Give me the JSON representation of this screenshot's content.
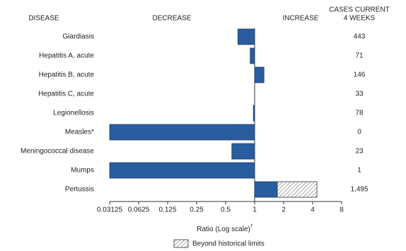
{
  "chart_data": {
    "type": "bar",
    "orientation": "horizontal",
    "log_scale": true,
    "log_base": 2,
    "column_headers": {
      "disease": "DISEASE",
      "decrease": "DECREASE",
      "increase": "INCREASE",
      "cases_line1": "CASES CURRENT",
      "cases_line2": "4 WEEKS"
    },
    "categories": [
      "Giardiasis",
      "Hepatitis A, acute",
      "Hepatitis B, acute",
      "Hepatitis C, acute",
      "Legionellosis",
      "Measles*",
      "Meningococcal disease",
      "Mumps",
      "Pertussis"
    ],
    "values": [
      0.67,
      0.9,
      1.25,
      1,
      0.97,
      0.03125,
      0.58,
      0.03125,
      4.43
    ],
    "historical_limits": [
      null,
      null,
      null,
      null,
      null,
      null,
      null,
      null,
      1.72
    ],
    "cases": [
      443,
      71,
      146,
      33,
      78,
      0,
      23,
      1,
      {
        "value": 1495,
        "label": "1,495"
      }
    ],
    "color": "#2a5d9f",
    "xlim": [
      0.03125,
      8
    ],
    "xticks": [
      0.03125,
      0.0625,
      0.125,
      0.25,
      0.5,
      1,
      2,
      4,
      8
    ],
    "xlabel": "Ratio (Log scale)",
    "xlabel_note": "†",
    "legend_label": "Beyond historical limits"
  }
}
